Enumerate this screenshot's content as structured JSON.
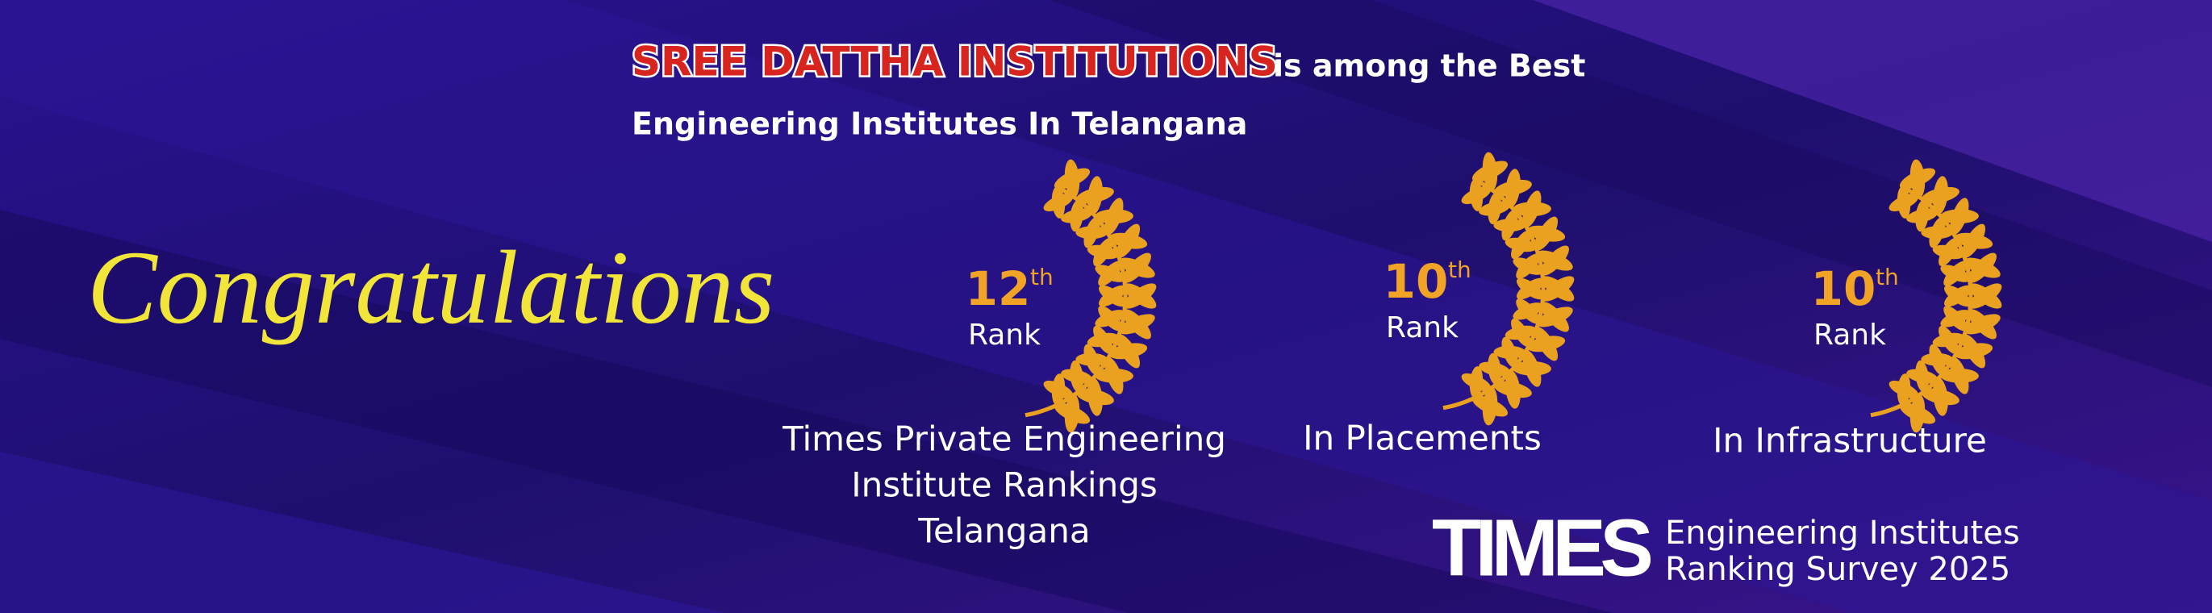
{
  "headline": {
    "name": "SREE DATTHA INSTITUTIONS",
    "rest": "is among the Best",
    "line2": "Engineering Institutes In Telangana"
  },
  "greeting": "Congratulations",
  "awards": [
    {
      "rank": "12",
      "suffix": "th",
      "rank_label": "Rank",
      "caption": [
        "Times Private Engineering",
        "Institute Rankings",
        "Telangana"
      ]
    },
    {
      "rank": "10",
      "suffix": "th",
      "rank_label": "Rank",
      "caption": [
        "In Placements"
      ]
    },
    {
      "rank": "10",
      "suffix": "th",
      "rank_label": "Rank",
      "caption": [
        "In Infrastructure"
      ]
    }
  ],
  "footer": {
    "brand": "TIMES",
    "line1": "Engineering Institutes",
    "line2": "Ranking Survey 2025"
  }
}
